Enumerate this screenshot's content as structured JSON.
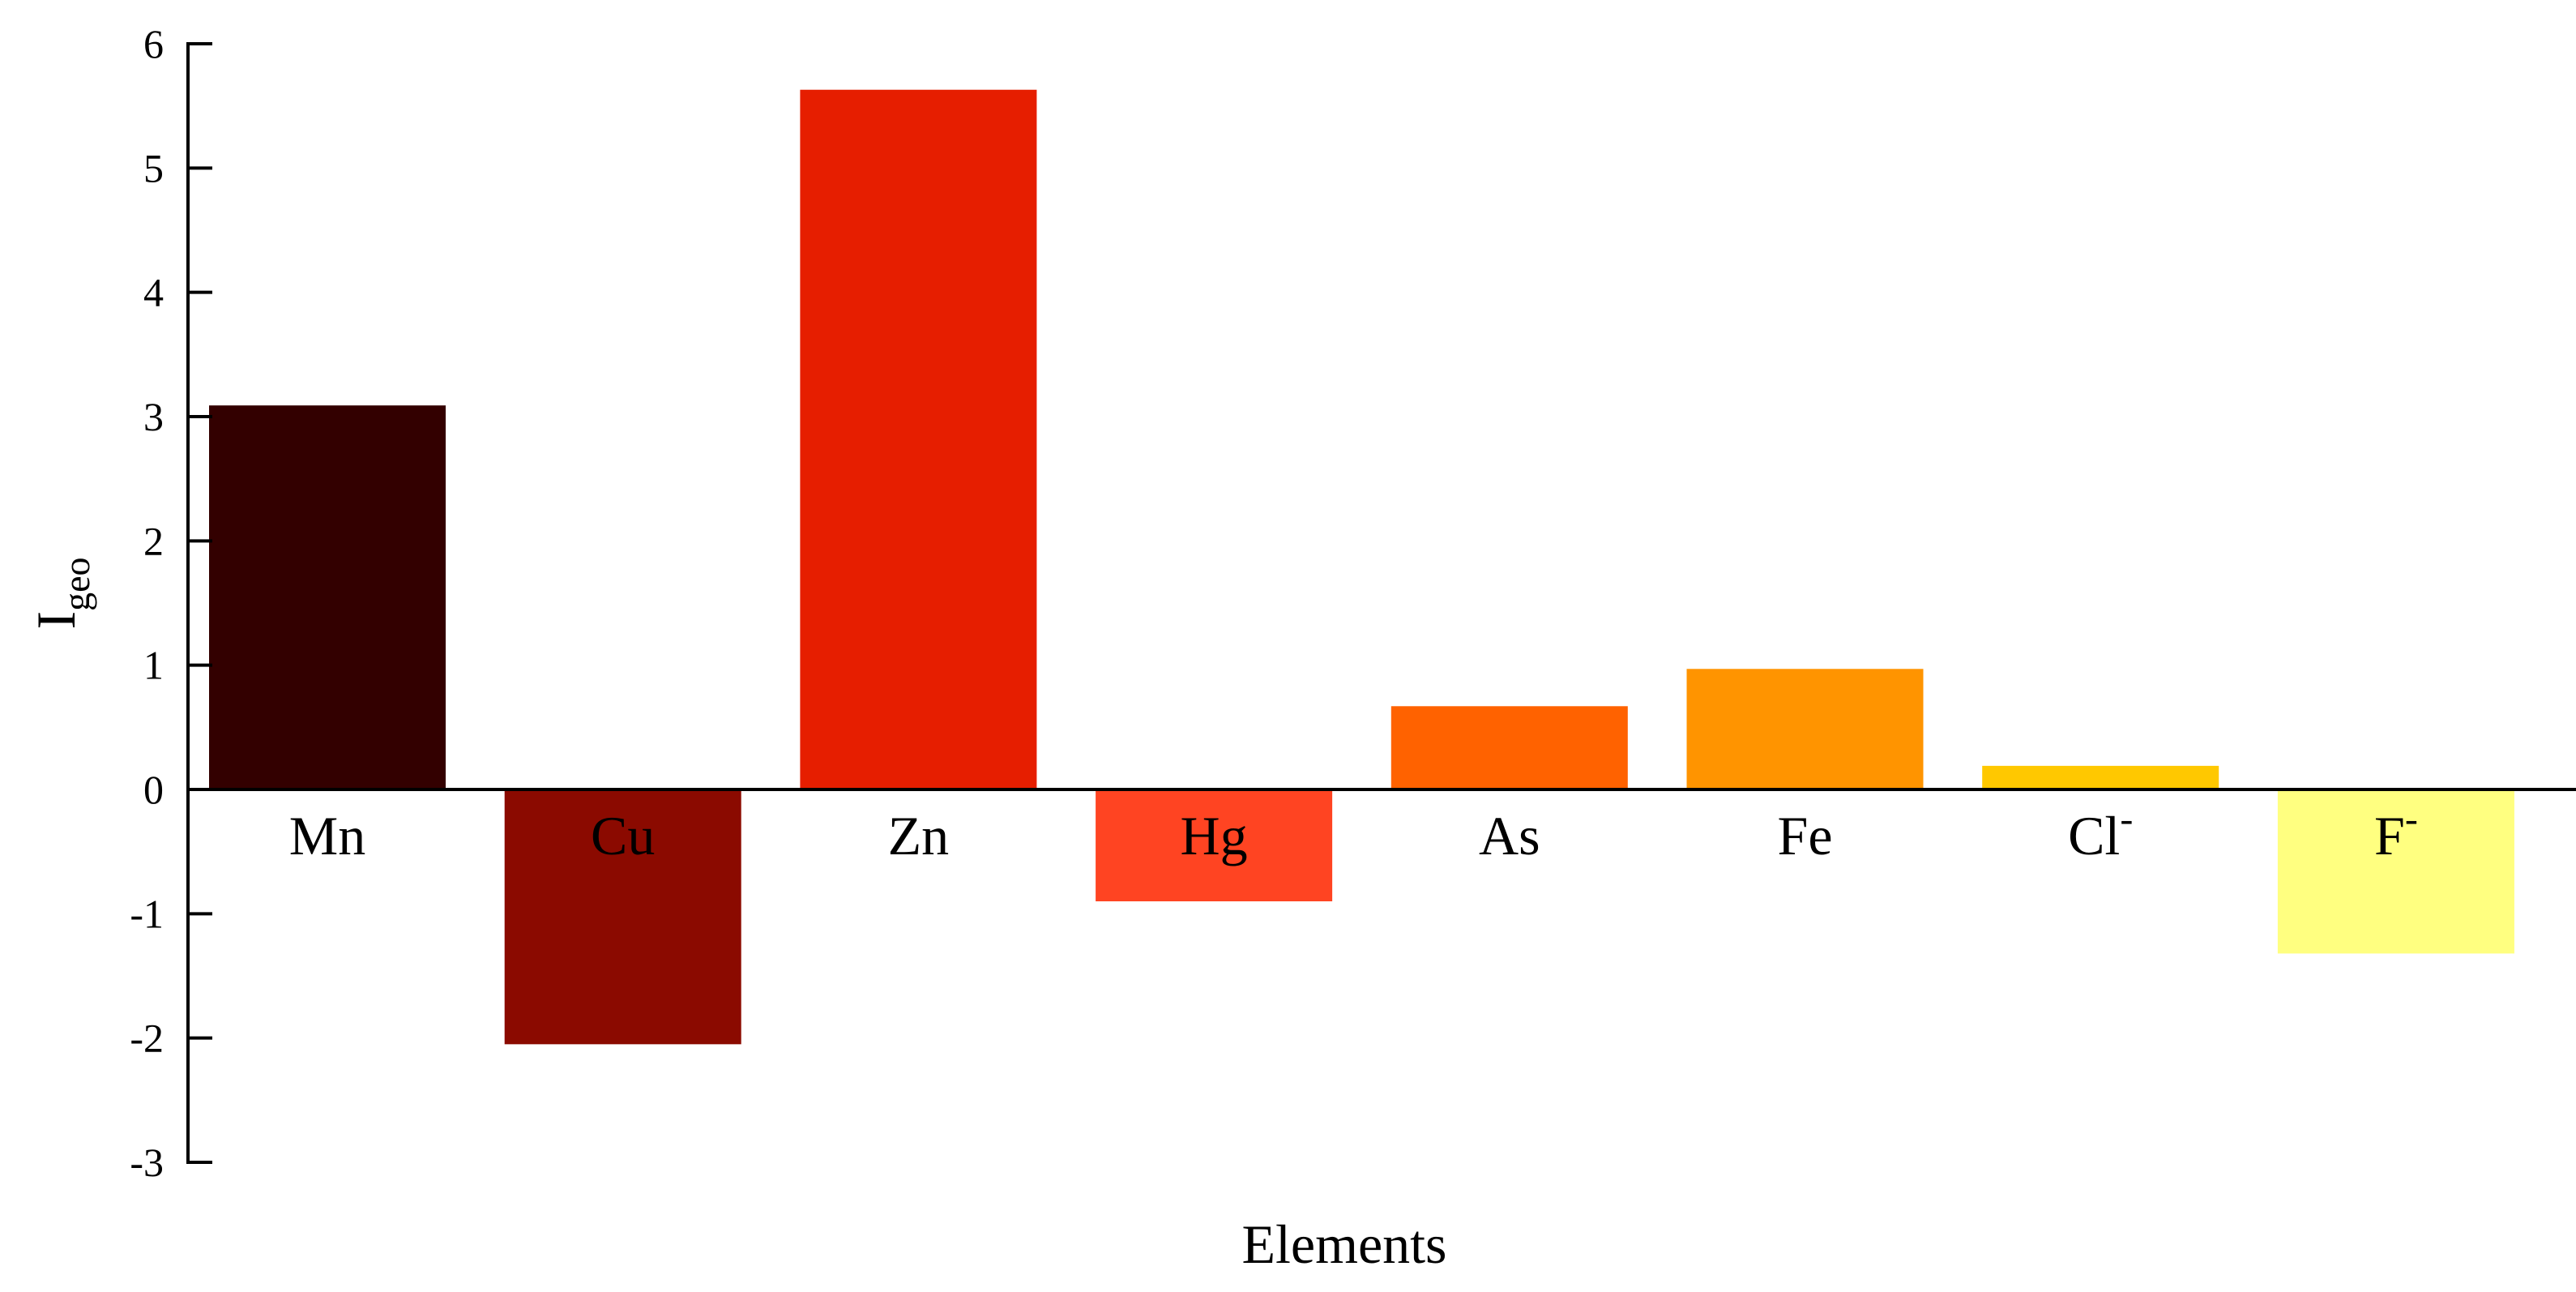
{
  "chart_data": {
    "type": "bar",
    "categories": [
      "Mn",
      "Cu",
      "Zn",
      "Hg",
      "As",
      "Fe",
      "Cl",
      "F"
    ],
    "category_superscripts": [
      "",
      "",
      "",
      "",
      "",
      "",
      "-",
      "-"
    ],
    "values": [
      3.09,
      -2.05,
      5.63,
      -0.9,
      0.67,
      0.97,
      0.19,
      -1.32
    ],
    "colors": [
      "#330000",
      "#8b0a00",
      "#e61e00",
      "#ff4422",
      "#ff6200",
      "#ff9400",
      "#ffc800",
      "#ffff80"
    ],
    "xlabel": "Elements",
    "ylabel": {
      "main": "I",
      "sub": "geo"
    },
    "ylim": [
      -3,
      6
    ],
    "yticks": [
      -3,
      -2,
      -1,
      0,
      1,
      2,
      3,
      4,
      5,
      6
    ],
    "grid": false,
    "legend": "none"
  }
}
